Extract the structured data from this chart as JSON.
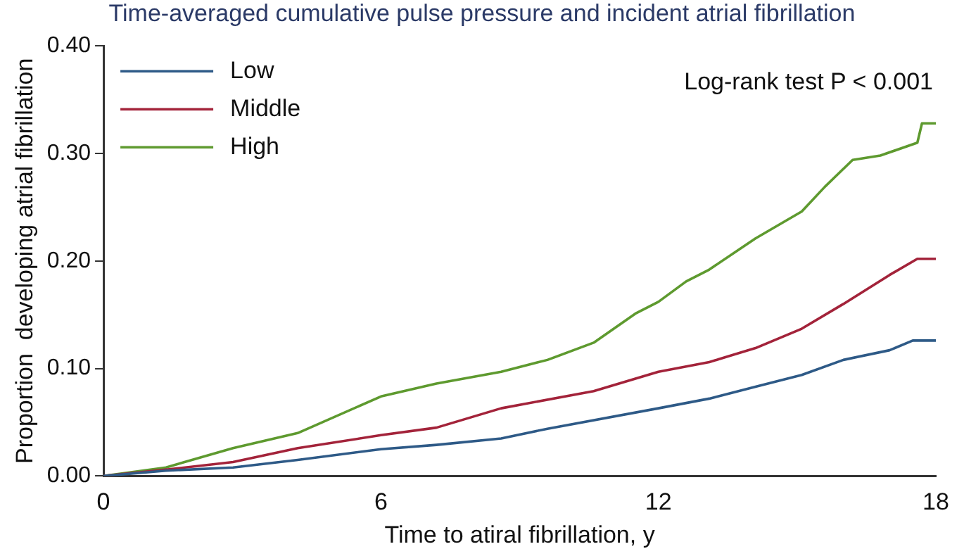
{
  "chart_data": {
    "type": "line",
    "title": "Time-averaged cumulative pulse pressure and incident atrial fibrillation",
    "xlabel": "Time to atiral fibrillation, y",
    "ylabel": "Proportion  developing atrial fibrillation",
    "annotations": [
      "Log-rank test P < 0.001"
    ],
    "xlim": [
      0,
      18
    ],
    "xticks": [
      0,
      6,
      12,
      18
    ],
    "ylim": [
      0,
      0.4
    ],
    "yticks": [
      {
        "value": 0,
        "label": "0.00"
      },
      {
        "value": 0.1,
        "label": "0.10"
      },
      {
        "value": 0.2,
        "label": "0.20"
      },
      {
        "value": 0.3,
        "label": "0.30"
      },
      {
        "value": 0.4,
        "label": "0.40"
      }
    ],
    "grid": false,
    "legend": "top left",
    "marker": "none",
    "line_style": "solid",
    "series": [
      {
        "name": "Low",
        "color": "#2e5a87",
        "x": [
          0,
          1.35,
          2.8,
          4.2,
          6,
          7.2,
          8.6,
          9.6,
          12,
          13.1,
          14.1,
          15.1,
          16,
          17,
          17.5,
          18
        ],
        "values": [
          0,
          0.005,
          0.008,
          0.015,
          0.025,
          0.029,
          0.035,
          0.044,
          0.063,
          0.072,
          0.083,
          0.094,
          0.108,
          0.117,
          0.126,
          0.126
        ]
      },
      {
        "name": "Middle",
        "color": "#a3233a",
        "x": [
          0,
          1.35,
          2.8,
          4.2,
          6,
          7.2,
          8.6,
          10.6,
          12,
          13.1,
          14.1,
          15.1,
          16,
          17,
          17.6,
          18
        ],
        "values": [
          0,
          0.006,
          0.013,
          0.026,
          0.038,
          0.045,
          0.063,
          0.079,
          0.097,
          0.106,
          0.119,
          0.137,
          0.16,
          0.187,
          0.202,
          0.202
        ]
      },
      {
        "name": "High",
        "color": "#5e9a2f",
        "x": [
          0,
          1.35,
          2.8,
          4.2,
          6,
          7.2,
          8.6,
          9.6,
          10.6,
          11.5,
          12,
          12.6,
          13.1,
          14.1,
          15.1,
          15.6,
          16.2,
          16.8,
          17.6,
          17.7,
          18
        ],
        "values": [
          0,
          0.008,
          0.026,
          0.04,
          0.074,
          0.086,
          0.097,
          0.108,
          0.124,
          0.151,
          0.162,
          0.181,
          0.192,
          0.221,
          0.246,
          0.269,
          0.294,
          0.298,
          0.31,
          0.328,
          0.328
        ]
      }
    ]
  }
}
